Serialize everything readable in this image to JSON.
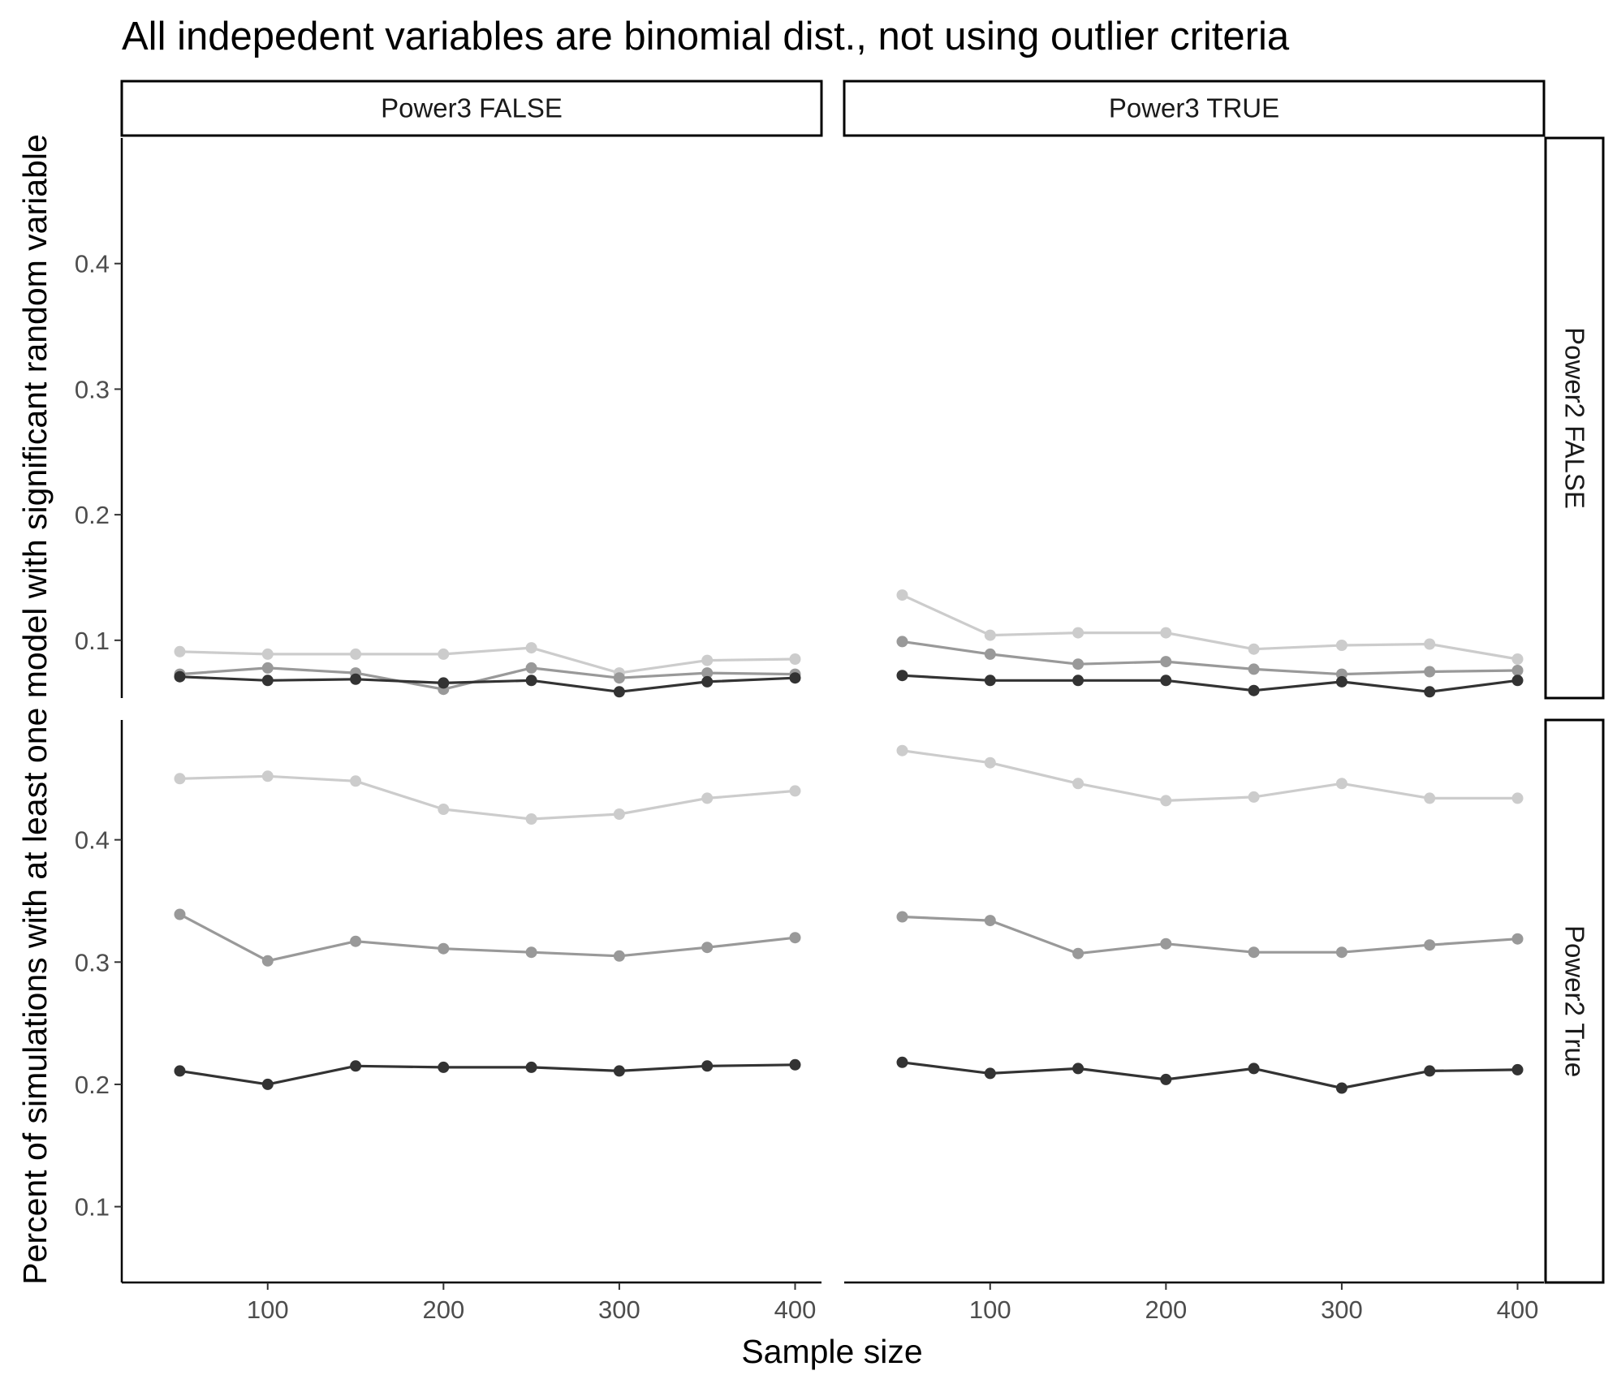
{
  "chart_data": {
    "type": "line",
    "title": "All indepedent variables are binomial dist., not using outlier criteria",
    "xlabel": "Sample size",
    "ylabel": "Percent of simulations with at least one model with significant random variable",
    "x": [
      50,
      100,
      150,
      200,
      250,
      300,
      350,
      400
    ],
    "xticks": [
      100,
      200,
      300,
      400
    ],
    "xtick_labels": [
      "100",
      "200",
      "300",
      "400"
    ],
    "xlim": [
      17,
      415
    ],
    "grid": false,
    "legend": "none",
    "column_facets": [
      "Power3 FALSE",
      "Power3 TRUE"
    ],
    "row_facets": [
      "Power2 FALSE",
      "Power2 True"
    ],
    "series_colors": [
      "#cccccc",
      "#999999",
      "#333333"
    ],
    "rows": [
      {
        "ylim": [
          0.054,
          0.5
        ],
        "yticks": [
          0.1,
          0.2,
          0.3,
          0.4
        ],
        "ytick_labels": [
          "0.1",
          "0.2",
          "0.3",
          "0.4"
        ]
      },
      {
        "ylim": [
          0.038,
          0.498
        ],
        "yticks": [
          0.1,
          0.2,
          0.3,
          0.4
        ],
        "ytick_labels": [
          "0.1",
          "0.2",
          "0.3",
          "0.4"
        ]
      }
    ],
    "panels": [
      {
        "row": 0,
        "col": 0,
        "series": [
          {
            "name": "light",
            "values": [
              0.091,
              0.089,
              0.089,
              0.089,
              0.094,
              0.074,
              0.084,
              0.085
            ]
          },
          {
            "name": "medium",
            "values": [
              0.073,
              0.078,
              0.074,
              0.061,
              0.078,
              0.07,
              0.074,
              0.073
            ]
          },
          {
            "name": "dark",
            "values": [
              0.071,
              0.068,
              0.069,
              0.066,
              0.068,
              0.059,
              0.067,
              0.07
            ]
          }
        ]
      },
      {
        "row": 0,
        "col": 1,
        "series": [
          {
            "name": "light",
            "values": [
              0.136,
              0.104,
              0.106,
              0.106,
              0.093,
              0.096,
              0.097,
              0.085
            ]
          },
          {
            "name": "medium",
            "values": [
              0.099,
              0.089,
              0.081,
              0.083,
              0.077,
              0.073,
              0.075,
              0.076
            ]
          },
          {
            "name": "dark",
            "values": [
              0.072,
              0.068,
              0.068,
              0.068,
              0.06,
              0.067,
              0.059,
              0.068
            ]
          }
        ]
      },
      {
        "row": 1,
        "col": 0,
        "series": [
          {
            "name": "light",
            "values": [
              0.45,
              0.452,
              0.448,
              0.425,
              0.417,
              0.421,
              0.434,
              0.44
            ]
          },
          {
            "name": "medium",
            "values": [
              0.339,
              0.301,
              0.317,
              0.311,
              0.308,
              0.305,
              0.312,
              0.32
            ]
          },
          {
            "name": "dark",
            "values": [
              0.211,
              0.2,
              0.215,
              0.214,
              0.214,
              0.211,
              0.215,
              0.216
            ]
          }
        ]
      },
      {
        "row": 1,
        "col": 1,
        "series": [
          {
            "name": "light",
            "values": [
              0.473,
              0.463,
              0.446,
              0.432,
              0.435,
              0.446,
              0.434,
              0.434
            ]
          },
          {
            "name": "medium",
            "values": [
              0.337,
              0.334,
              0.307,
              0.315,
              0.308,
              0.308,
              0.314,
              0.319
            ]
          },
          {
            "name": "dark",
            "values": [
              0.218,
              0.209,
              0.213,
              0.204,
              0.213,
              0.197,
              0.211,
              0.212
            ]
          }
        ]
      }
    ]
  }
}
